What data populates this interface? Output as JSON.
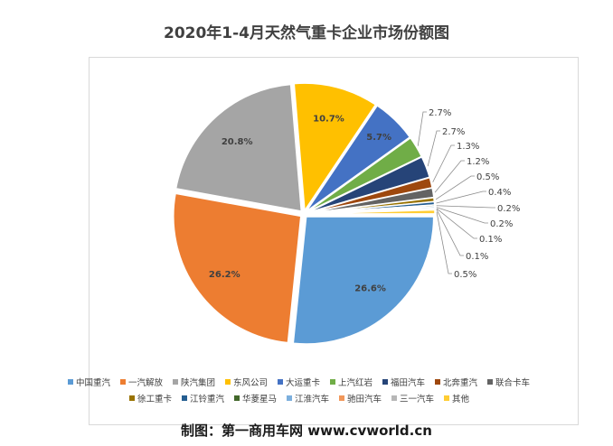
{
  "chart_data": {
    "type": "pie",
    "title": "2020年1-4月天然气重卡企业市场份额图",
    "slices": [
      {
        "name": "中国重汽",
        "value": 26.6,
        "label": "26.6%",
        "color": "#5b9bd5"
      },
      {
        "name": "一汽解放",
        "value": 26.2,
        "label": "26.2%",
        "color": "#ed7d31"
      },
      {
        "name": "陕汽集团",
        "value": 20.8,
        "label": "20.8%",
        "color": "#a5a5a5"
      },
      {
        "name": "东风公司",
        "value": 10.7,
        "label": "10.7%",
        "color": "#ffc000"
      },
      {
        "name": "大运重卡",
        "value": 5.7,
        "label": "5.7%",
        "color": "#4472c4"
      },
      {
        "name": "上汽红岩",
        "value": 2.7,
        "label": "2.7%",
        "color": "#70ad47"
      },
      {
        "name": "福田汽车",
        "value": 2.7,
        "label": "2.7%",
        "color": "#264478"
      },
      {
        "name": "北奔重汽",
        "value": 1.3,
        "label": "1.3%",
        "color": "#9e480e"
      },
      {
        "name": "联合卡车",
        "value": 1.2,
        "label": "1.2%",
        "color": "#636363"
      },
      {
        "name": "徐工重卡",
        "value": 0.5,
        "label": "0.5%",
        "color": "#997300"
      },
      {
        "name": "江铃重汽",
        "value": 0.4,
        "label": "0.4%",
        "color": "#255e91"
      },
      {
        "name": "华菱星马",
        "value": 0.2,
        "label": "0.2%",
        "color": "#43682b"
      },
      {
        "name": "江淮汽车",
        "value": 0.2,
        "label": "0.2%",
        "color": "#7cafdd"
      },
      {
        "name": "驰田汽车",
        "value": 0.1,
        "label": "0.1%",
        "color": "#f1975a"
      },
      {
        "name": "三一汽车",
        "value": 0.1,
        "label": "0.1%",
        "color": "#b7b7b7"
      },
      {
        "name": "其他",
        "value": 0.5,
        "label": "0.5%",
        "color": "#ffcd33"
      }
    ]
  },
  "watermark": "制图：第一商用车网 www.cvworld.cn"
}
